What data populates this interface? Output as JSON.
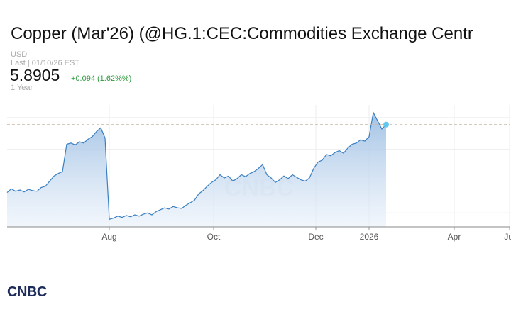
{
  "chart_data": {
    "type": "area",
    "title": "Copper (Mar'26) (@HG.1:CEC:Commodities Exchange Centr",
    "currency": "USD",
    "last_updated": "Last | 01/10/26 EST",
    "price": "5.8905",
    "change": "+0.094 (1.62%%)",
    "range": "1 Year",
    "watermark": "CNBC",
    "logo": "CNBC",
    "color": "#3a7fc1",
    "grid": true,
    "x": [
      0,
      2,
      4,
      6,
      8,
      10,
      12,
      14,
      16,
      18,
      20,
      22,
      24,
      26,
      28,
      30,
      32,
      34,
      36,
      38,
      40,
      42,
      44,
      46,
      48,
      50,
      52,
      54,
      56,
      58,
      60,
      62,
      64,
      66,
      68,
      70,
      72,
      74,
      76,
      78,
      80,
      82,
      84,
      86,
      88,
      90,
      92,
      94,
      96,
      98,
      100,
      102,
      104,
      106,
      108,
      110,
      112,
      114,
      116,
      118,
      120,
      122,
      124,
      126,
      128,
      130,
      132,
      134,
      136,
      138,
      140,
      142,
      144,
      146,
      148,
      150,
      152,
      154,
      156,
      158,
      160,
      162,
      164,
      166,
      168,
      170,
      172,
      174,
      176,
      178
    ],
    "values": [
      4.82,
      4.88,
      4.84,
      4.86,
      4.83,
      4.87,
      4.85,
      4.84,
      4.9,
      4.92,
      5.0,
      5.08,
      5.12,
      5.15,
      5.58,
      5.6,
      5.57,
      5.62,
      5.6,
      5.66,
      5.7,
      5.78,
      5.84,
      5.68,
      4.4,
      4.42,
      4.45,
      4.43,
      4.46,
      4.44,
      4.47,
      4.45,
      4.48,
      4.5,
      4.47,
      4.52,
      4.55,
      4.58,
      4.56,
      4.6,
      4.58,
      4.57,
      4.62,
      4.66,
      4.7,
      4.8,
      4.85,
      4.92,
      4.98,
      5.02,
      5.1,
      5.05,
      5.08,
      5.0,
      5.04,
      5.1,
      5.07,
      5.12,
      5.15,
      5.2,
      5.26,
      5.1,
      5.05,
      4.98,
      5.02,
      5.08,
      5.04,
      5.1,
      5.06,
      5.02,
      5.0,
      5.05,
      5.2,
      5.3,
      5.33,
      5.42,
      5.4,
      5.45,
      5.48,
      5.44,
      5.52,
      5.58,
      5.6,
      5.65,
      5.63,
      5.7,
      6.08,
      5.95,
      5.82,
      5.8905
    ],
    "xlim": [
      0,
      236
    ],
    "xticks": [
      {
        "value": 48,
        "label": "Aug"
      },
      {
        "value": 97,
        "label": "Oct"
      },
      {
        "value": 145,
        "label": "Dec"
      },
      {
        "value": 170,
        "label": "2026"
      },
      {
        "value": 210,
        "label": "Apr"
      },
      {
        "value": 236,
        "label": "Jul"
      }
    ],
    "ylim": [
      4.28,
      6.2
    ],
    "yticks": [
      4.5,
      5,
      5.5,
      6
    ]
  }
}
